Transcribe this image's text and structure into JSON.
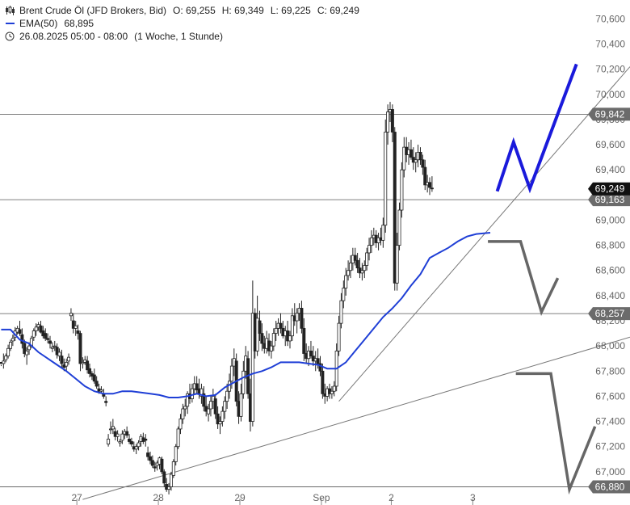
{
  "legend": {
    "instrument": "Brent Crude Öl (JFD Brokers, Bid)",
    "open": "O: 69,255",
    "high": "H: 69,349",
    "low": "L: 69,225",
    "close": "C: 69,249",
    "ema_name": "EMA(50)",
    "ema_value": "68,895",
    "period": "26.08.2025 05:00 - 08:00",
    "interval": "(1 Woche, 1 Stunde)",
    "candle_icon": "candlestick-icon",
    "ema_icon": "line-icon",
    "clock_icon": "clock-icon"
  },
  "colors": {
    "candle": "#222222",
    "ema": "#1f3fd6",
    "scenario_up": "#1a1adb",
    "scenario_gray": "#666666",
    "level_line": "#555555",
    "trend_line": "#777777",
    "badge_gray": "#6b6b6b",
    "badge_price": "#111111",
    "axis_text": "#666666"
  },
  "chart_data": {
    "type": "candlestick",
    "title": "Brent Crude Öl (JFD Brokers, Bid)",
    "x_tick_labels": [
      {
        "label": "27",
        "bar": 32.5
      },
      {
        "label": "28",
        "bar": 67.5
      },
      {
        "label": "29",
        "bar": 102.5
      },
      {
        "label": "Sep",
        "bar": 137.5
      },
      {
        "label": "2",
        "bar": 167.5
      },
      {
        "label": "3",
        "bar": 202.5
      }
    ],
    "y_ticks": [
      "67,000",
      "67,200",
      "67,400",
      "67,600",
      "67,800",
      "68,000",
      "68,200",
      "68,400",
      "68,600",
      "68,800",
      "69,000",
      "69,200",
      "69,400",
      "69,600",
      "69,800",
      "70,000",
      "70,200",
      "70,400",
      "70,600"
    ],
    "y_tick_values": [
      67.0,
      67.2,
      67.4,
      67.6,
      67.8,
      68.0,
      68.2,
      68.4,
      68.6,
      68.8,
      69.0,
      69.2,
      69.4,
      69.6,
      69.8,
      70.0,
      70.2,
      70.4,
      70.6
    ],
    "ylim": [
      66.8,
      70.75
    ],
    "xlim": [
      -0.5,
      270
    ],
    "horizontal_levels": [
      {
        "value": 69.842,
        "label": "69,842"
      },
      {
        "value": 69.163,
        "label": "69,163"
      },
      {
        "value": 68.257,
        "label": "68,257"
      },
      {
        "value": 66.88,
        "label": "66,880"
      }
    ],
    "last_price": {
      "value": 69.249,
      "label": "69,249"
    },
    "trendlines": [
      {
        "from": [
          35,
          66.78
        ],
        "to": [
          270,
          68.07
        ]
      },
      {
        "from": [
          145,
          67.56
        ],
        "to": [
          270,
          70.22
        ]
      }
    ],
    "scenarios": [
      {
        "name": "up",
        "points": [
          [
            213,
            69.23
          ],
          [
            220,
            69.62
          ],
          [
            227,
            69.25
          ],
          [
            247,
            70.24
          ]
        ]
      },
      {
        "name": "mid",
        "points": [
          [
            209,
            68.83
          ],
          [
            223,
            68.83
          ],
          [
            232,
            68.27
          ],
          [
            239,
            68.54
          ]
        ]
      },
      {
        "name": "down",
        "points": [
          [
            221,
            67.78
          ],
          [
            236,
            67.78
          ],
          [
            244,
            66.86
          ],
          [
            255,
            67.36
          ]
        ]
      }
    ],
    "ema": [
      [
        0,
        68.13
      ],
      [
        4,
        68.13
      ],
      [
        8,
        68.05
      ],
      [
        12,
        68.02
      ],
      [
        16,
        67.95
      ],
      [
        20,
        67.9
      ],
      [
        24,
        67.85
      ],
      [
        28,
        67.8
      ],
      [
        32,
        67.74
      ],
      [
        36,
        67.68
      ],
      [
        40,
        67.64
      ],
      [
        44,
        67.62
      ],
      [
        48,
        67.62
      ],
      [
        52,
        67.64
      ],
      [
        56,
        67.64
      ],
      [
        60,
        67.63
      ],
      [
        64,
        67.62
      ],
      [
        68,
        67.61
      ],
      [
        72,
        67.59
      ],
      [
        76,
        67.59
      ],
      [
        80,
        67.6
      ],
      [
        84,
        67.62
      ],
      [
        88,
        67.6
      ],
      [
        92,
        67.61
      ],
      [
        96,
        67.67
      ],
      [
        100,
        67.71
      ],
      [
        104,
        67.75
      ],
      [
        108,
        67.78
      ],
      [
        112,
        67.8
      ],
      [
        116,
        67.83
      ],
      [
        120,
        67.87
      ],
      [
        124,
        67.87
      ],
      [
        128,
        67.87
      ],
      [
        132,
        67.86
      ],
      [
        136,
        67.85
      ],
      [
        140,
        67.82
      ],
      [
        144,
        67.82
      ],
      [
        148,
        67.87
      ],
      [
        152,
        67.96
      ],
      [
        156,
        68.05
      ],
      [
        160,
        68.14
      ],
      [
        164,
        68.23
      ],
      [
        168,
        68.3
      ],
      [
        172,
        68.38
      ],
      [
        176,
        68.48
      ],
      [
        180,
        68.57
      ],
      [
        184,
        68.7
      ],
      [
        188,
        68.74
      ],
      [
        192,
        68.78
      ],
      [
        196,
        68.83
      ],
      [
        200,
        68.87
      ],
      [
        204,
        68.89
      ],
      [
        210,
        68.9
      ]
    ],
    "candles": [
      [
        67.87,
        67.84,
        67.85,
        67.86
      ],
      [
        67.86,
        67.94,
        67.82,
        67.88
      ],
      [
        67.89,
        67.94,
        67.87,
        67.92
      ],
      [
        67.92,
        68.01,
        67.9,
        67.98
      ],
      [
        67.98,
        68.05,
        67.96,
        68.03
      ],
      [
        68.04,
        68.09,
        68.0,
        68.06
      ],
      [
        68.07,
        68.15,
        68.04,
        68.12
      ],
      [
        68.11,
        68.16,
        68.09,
        68.14
      ],
      [
        68.13,
        68.2,
        68.08,
        68.1
      ],
      [
        68.09,
        68.14,
        67.98,
        68.02
      ],
      [
        68.02,
        68.05,
        67.91,
        67.94
      ],
      [
        67.93,
        67.99,
        67.85,
        67.96
      ],
      [
        67.97,
        68.03,
        67.93,
        68.0
      ],
      [
        68.0,
        68.08,
        67.98,
        68.06
      ],
      [
        68.07,
        68.14,
        68.04,
        68.12
      ],
      [
        68.12,
        68.18,
        68.08,
        68.15
      ],
      [
        68.15,
        68.19,
        68.12,
        68.17
      ],
      [
        68.16,
        68.2,
        68.1,
        68.11
      ],
      [
        68.12,
        68.16,
        68.06,
        68.08
      ],
      [
        68.1,
        68.14,
        68.04,
        68.06
      ],
      [
        68.06,
        68.1,
        68.02,
        68.05
      ],
      [
        68.04,
        68.08,
        67.98,
        68.02
      ],
      [
        67.98,
        68.03,
        67.95,
        67.99
      ],
      [
        68.0,
        68.04,
        67.96,
        68.0
      ],
      [
        67.99,
        68.02,
        67.9,
        67.93
      ],
      [
        67.92,
        67.98,
        67.88,
        67.95
      ],
      [
        67.92,
        67.97,
        67.82,
        67.86
      ],
      [
        67.85,
        67.9,
        67.8,
        67.83
      ],
      [
        67.84,
        67.9,
        67.8,
        67.87
      ],
      [
        67.88,
        67.94,
        67.85,
        67.91
      ],
      [
        68.24,
        68.3,
        68.2,
        68.26
      ],
      [
        68.2,
        68.26,
        68.1,
        68.14
      ],
      [
        68.14,
        68.2,
        68.08,
        68.16
      ],
      [
        68.12,
        68.17,
        68.05,
        68.1
      ],
      [
        68.1,
        68.12,
        67.8,
        67.86
      ],
      [
        67.86,
        67.91,
        67.82,
        67.87
      ],
      [
        67.87,
        67.92,
        67.85,
        67.89
      ],
      [
        67.88,
        67.92,
        67.78,
        67.81
      ],
      [
        67.82,
        67.86,
        67.75,
        67.78
      ],
      [
        67.78,
        67.8,
        67.73,
        67.76
      ],
      [
        67.77,
        67.82,
        67.7,
        67.72
      ],
      [
        67.72,
        67.76,
        67.66,
        67.68
      ],
      [
        67.66,
        67.7,
        67.62,
        67.64
      ],
      [
        67.64,
        67.68,
        67.62,
        67.65
      ],
      [
        67.62,
        67.66,
        67.58,
        67.6
      ],
      [
        67.56,
        67.6,
        67.52,
        67.55
      ],
      [
        67.22,
        67.3,
        67.2,
        67.26
      ],
      [
        67.34,
        67.4,
        67.3,
        67.34
      ],
      [
        67.34,
        67.42,
        67.3,
        67.36
      ],
      [
        67.32,
        67.35,
        67.25,
        67.28
      ],
      [
        67.28,
        67.33,
        67.24,
        67.3
      ],
      [
        67.23,
        67.26,
        67.2,
        67.24
      ],
      [
        67.25,
        67.33,
        67.22,
        67.3
      ],
      [
        67.3,
        67.34,
        67.26,
        67.32
      ],
      [
        67.32,
        67.36,
        67.27,
        67.29
      ],
      [
        67.26,
        67.3,
        67.22,
        67.24
      ],
      [
        67.24,
        67.27,
        67.2,
        67.22
      ],
      [
        67.2,
        67.24,
        67.16,
        67.18
      ],
      [
        67.18,
        67.22,
        67.14,
        67.2
      ],
      [
        67.2,
        67.25,
        67.17,
        67.23
      ],
      [
        67.24,
        67.3,
        67.2,
        67.28
      ],
      [
        67.27,
        67.31,
        67.22,
        67.24
      ],
      [
        67.26,
        67.3,
        67.2,
        67.25
      ],
      [
        67.15,
        67.2,
        67.09,
        67.12
      ],
      [
        67.12,
        67.16,
        67.06,
        67.09
      ],
      [
        67.09,
        67.13,
        67.03,
        67.05
      ],
      [
        67.04,
        67.08,
        67.0,
        67.03
      ],
      [
        67.05,
        67.09,
        67.01,
        67.07
      ],
      [
        67.06,
        67.12,
        67.02,
        67.11
      ],
      [
        67.1,
        67.12,
        66.98,
        67.0
      ],
      [
        67.0,
        67.02,
        66.88,
        66.91
      ],
      [
        66.9,
        66.95,
        66.84,
        66.86
      ],
      [
        66.86,
        66.91,
        66.82,
        66.88
      ],
      [
        66.88,
        67.0,
        66.85,
        66.98
      ],
      [
        66.97,
        67.1,
        66.95,
        67.08
      ],
      [
        67.08,
        67.22,
        67.05,
        67.2
      ],
      [
        67.2,
        67.36,
        67.18,
        67.34
      ],
      [
        67.34,
        67.46,
        67.3,
        67.42
      ],
      [
        67.42,
        67.54,
        67.38,
        67.5
      ],
      [
        67.5,
        67.58,
        67.44,
        67.52
      ],
      [
        67.52,
        67.64,
        67.46,
        67.62
      ],
      [
        67.62,
        67.7,
        67.54,
        67.58
      ],
      [
        67.58,
        67.7,
        67.55,
        67.66
      ],
      [
        67.66,
        67.76,
        67.62,
        67.7
      ],
      [
        67.7,
        67.76,
        67.62,
        67.65
      ],
      [
        67.66,
        67.74,
        67.58,
        67.62
      ],
      [
        67.6,
        67.7,
        67.54,
        67.66
      ],
      [
        67.62,
        67.68,
        67.48,
        67.52
      ],
      [
        67.52,
        67.6,
        67.44,
        67.48
      ],
      [
        67.46,
        67.54,
        67.4,
        67.5
      ],
      [
        67.5,
        67.6,
        67.44,
        67.56
      ],
      [
        67.56,
        67.66,
        67.5,
        67.6
      ],
      [
        67.58,
        67.62,
        67.42,
        67.46
      ],
      [
        67.46,
        67.52,
        67.34,
        67.38
      ],
      [
        67.38,
        67.44,
        67.3,
        67.4
      ],
      [
        67.4,
        67.52,
        67.36,
        67.48
      ],
      [
        67.48,
        67.6,
        67.42,
        67.56
      ],
      [
        67.56,
        67.7,
        67.5,
        67.64
      ],
      [
        67.64,
        67.78,
        67.58,
        67.72
      ],
      [
        67.72,
        67.9,
        67.66,
        67.84
      ],
      [
        67.84,
        67.98,
        67.76,
        67.9
      ],
      [
        67.88,
        67.94,
        67.52,
        67.56
      ],
      [
        67.56,
        67.64,
        67.38,
        67.44
      ],
      [
        67.44,
        67.7,
        67.4,
        67.62
      ],
      [
        67.62,
        67.88,
        67.58,
        67.8
      ],
      [
        67.8,
        68.0,
        67.74,
        67.92
      ],
      [
        67.9,
        67.96,
        67.58,
        67.62
      ],
      [
        67.62,
        67.74,
        67.32,
        67.4
      ],
      [
        67.4,
        68.52,
        67.36,
        68.26
      ],
      [
        68.26,
        68.3,
        67.9,
        67.96
      ],
      [
        67.96,
        68.4,
        67.92,
        68.22
      ],
      [
        68.2,
        68.28,
        68.04,
        68.1
      ],
      [
        68.1,
        68.18,
        67.96,
        68.02
      ],
      [
        68.02,
        68.08,
        67.94,
        67.98
      ],
      [
        67.98,
        68.12,
        67.94,
        68.06
      ],
      [
        68.04,
        68.1,
        67.92,
        67.96
      ],
      [
        67.96,
        68.04,
        67.9,
        68.0
      ],
      [
        68.0,
        68.14,
        67.96,
        68.1
      ],
      [
        68.1,
        68.2,
        68.04,
        68.14
      ],
      [
        68.14,
        68.22,
        68.08,
        68.18
      ],
      [
        68.18,
        68.26,
        68.1,
        68.14
      ],
      [
        68.14,
        68.2,
        68.06,
        68.08
      ],
      [
        68.08,
        68.16,
        68.0,
        68.12
      ],
      [
        68.12,
        68.2,
        68.0,
        68.04
      ],
      [
        68.04,
        68.12,
        67.98,
        68.08
      ],
      [
        68.08,
        68.3,
        68.04,
        68.24
      ],
      [
        68.24,
        68.34,
        68.16,
        68.2
      ],
      [
        68.2,
        68.3,
        68.1,
        68.26
      ],
      [
        68.26,
        68.34,
        68.2,
        68.3
      ],
      [
        68.3,
        68.36,
        68.1,
        68.14
      ],
      [
        68.14,
        68.22,
        67.88,
        67.94
      ],
      [
        67.94,
        68.02,
        67.86,
        67.9
      ],
      [
        67.9,
        68.0,
        67.84,
        67.96
      ],
      [
        67.96,
        68.04,
        67.9,
        67.92
      ],
      [
        67.92,
        68.0,
        67.84,
        67.88
      ],
      [
        67.88,
        67.96,
        67.8,
        67.9
      ],
      [
        67.9,
        67.98,
        67.82,
        67.86
      ],
      [
        67.86,
        67.92,
        67.76,
        67.8
      ],
      [
        67.8,
        67.86,
        67.58,
        67.62
      ],
      [
        67.62,
        67.7,
        67.54,
        67.6
      ],
      [
        67.6,
        67.68,
        67.56,
        67.66
      ],
      [
        67.66,
        67.7,
        67.58,
        67.62
      ],
      [
        67.62,
        67.68,
        67.58,
        67.64
      ],
      [
        67.64,
        67.72,
        67.6,
        67.68
      ],
      [
        67.68,
        68.02,
        67.64,
        67.96
      ],
      [
        67.96,
        68.24,
        67.92,
        68.18
      ],
      [
        68.18,
        68.42,
        68.14,
        68.36
      ],
      [
        68.36,
        68.52,
        68.3,
        68.46
      ],
      [
        68.46,
        68.62,
        68.4,
        68.56
      ],
      [
        68.56,
        68.68,
        68.52,
        68.6
      ],
      [
        68.6,
        68.72,
        68.54,
        68.66
      ],
      [
        68.66,
        68.78,
        68.6,
        68.72
      ],
      [
        68.72,
        68.78,
        68.64,
        68.68
      ],
      [
        68.68,
        68.74,
        68.58,
        68.62
      ],
      [
        68.62,
        68.7,
        68.54,
        68.58
      ],
      [
        68.58,
        68.66,
        68.52,
        68.6
      ],
      [
        68.6,
        68.68,
        68.54,
        68.64
      ],
      [
        68.64,
        68.78,
        68.6,
        68.74
      ],
      [
        68.74,
        68.86,
        68.68,
        68.8
      ],
      [
        68.8,
        68.92,
        68.74,
        68.86
      ],
      [
        68.86,
        68.94,
        68.8,
        68.88
      ],
      [
        68.88,
        68.92,
        68.78,
        68.82
      ],
      [
        68.82,
        68.9,
        68.76,
        68.86
      ],
      [
        68.86,
        68.94,
        68.8,
        68.84
      ],
      [
        68.84,
        69.02,
        68.78,
        68.96
      ],
      [
        68.96,
        69.8,
        68.9,
        69.7
      ],
      [
        69.7,
        69.92,
        69.6,
        69.86
      ],
      [
        69.86,
        69.94,
        69.78,
        69.88
      ],
      [
        69.88,
        69.92,
        69.62,
        69.7
      ],
      [
        69.7,
        69.74,
        68.44,
        68.5
      ],
      [
        68.5,
        68.9,
        68.44,
        68.8
      ],
      [
        68.8,
        69.14,
        68.76,
        69.08
      ],
      [
        69.08,
        69.46,
        69.02,
        69.4
      ],
      [
        69.4,
        69.66,
        69.34,
        69.58
      ],
      [
        69.58,
        69.66,
        69.46,
        69.52
      ],
      [
        69.52,
        69.62,
        69.44,
        69.56
      ],
      [
        69.56,
        69.64,
        69.48,
        69.5
      ],
      [
        69.5,
        69.58,
        69.4,
        69.46
      ],
      [
        69.46,
        69.54,
        69.38,
        69.48
      ],
      [
        69.48,
        69.6,
        69.42,
        69.54
      ],
      [
        69.54,
        69.58,
        69.44,
        69.48
      ],
      [
        69.48,
        69.52,
        69.36,
        69.42
      ],
      [
        69.42,
        69.48,
        69.24,
        69.28
      ],
      [
        69.28,
        69.36,
        69.22,
        69.3
      ],
      [
        69.3,
        69.34,
        69.2,
        69.26
      ],
      [
        69.255,
        69.349,
        69.225,
        69.249
      ]
    ]
  }
}
